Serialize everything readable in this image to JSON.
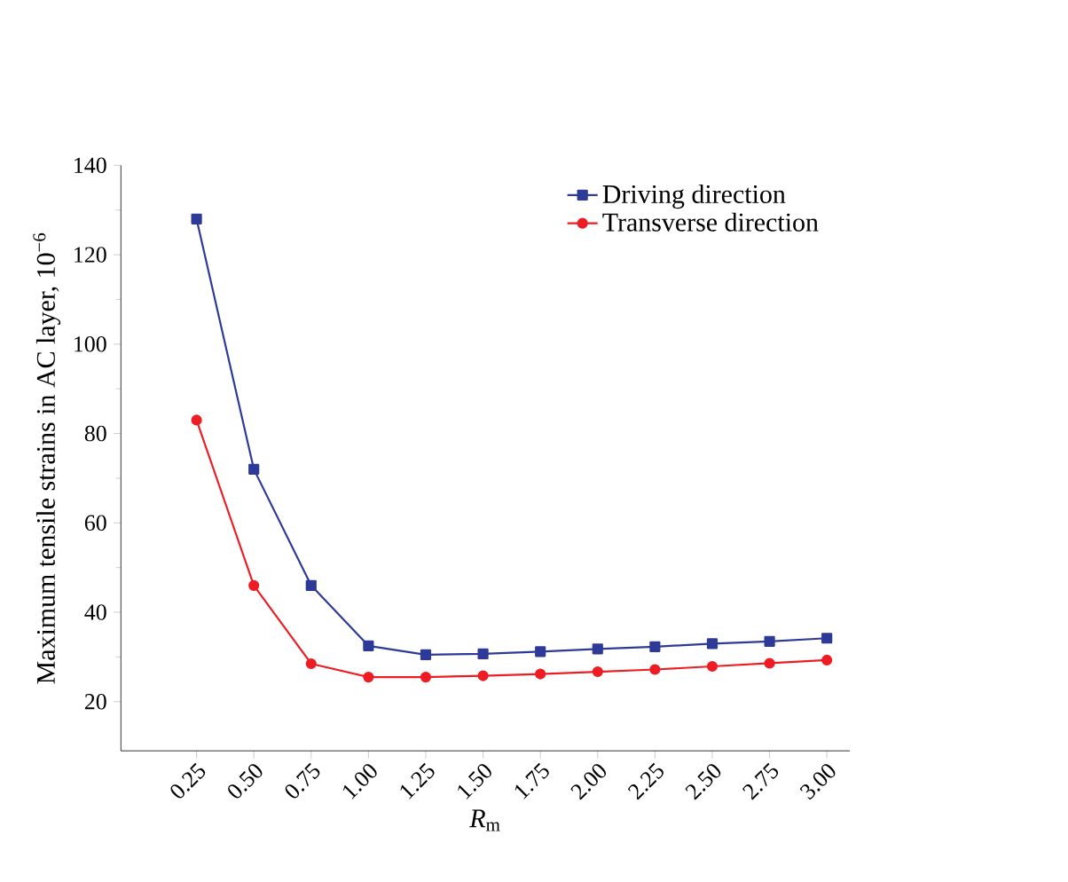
{
  "chart_data": {
    "type": "line",
    "xlabel": "*R*$_{m}$",
    "ylabel": "Maximum tensile strains in AC layer, 10$^{−6}$",
    "x": [
      0.25,
      0.5,
      0.75,
      1.0,
      1.25,
      1.5,
      1.75,
      2.0,
      2.25,
      2.5,
      2.75,
      3.0
    ],
    "series": [
      {
        "name": "Driving direction",
        "color": "#2e3a97",
        "marker": "square",
        "values": [
          128,
          72,
          46,
          32.5,
          30.5,
          30.7,
          31.2,
          31.8,
          32.3,
          33,
          33.5,
          34.2
        ]
      },
      {
        "name": "Transverse direction",
        "color": "#ee1d23",
        "marker": "circle",
        "values": [
          83,
          46,
          28.5,
          25.5,
          25.5,
          25.8,
          26.2,
          26.7,
          27.2,
          27.9,
          28.6,
          29.3
        ]
      }
    ],
    "xlim": [
      -0.08,
      3.1
    ],
    "ylim": [
      9,
      140
    ],
    "xticks": [
      {
        "value": 0.25,
        "label": "0.25"
      },
      {
        "value": 0.5,
        "label": "0.50"
      },
      {
        "value": 0.75,
        "label": "0.75"
      },
      {
        "value": 1.0,
        "label": "1.00"
      },
      {
        "value": 1.25,
        "label": "1.25"
      },
      {
        "value": 1.5,
        "label": "1.50"
      },
      {
        "value": 1.75,
        "label": "1.75"
      },
      {
        "value": 2.0,
        "label": "2.00"
      },
      {
        "value": 2.25,
        "label": "2.25"
      },
      {
        "value": 2.5,
        "label": "2.50"
      },
      {
        "value": 2.75,
        "label": "2.75"
      },
      {
        "value": 3.0,
        "label": "3.00"
      }
    ],
    "yticks": [
      20,
      40,
      60,
      80,
      100,
      120,
      140
    ],
    "legend": "top right",
    "grid": false,
    "line_style": "solid"
  }
}
